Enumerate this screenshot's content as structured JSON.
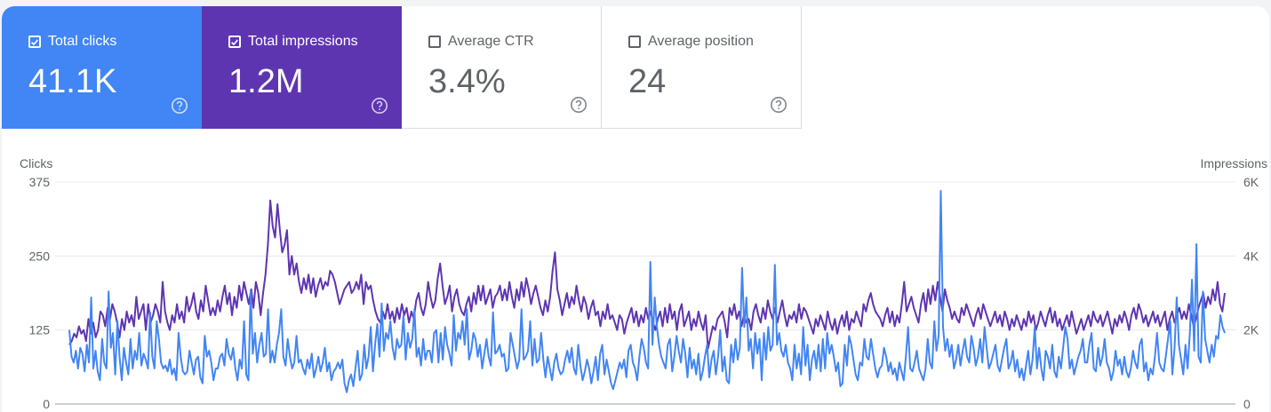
{
  "metrics": {
    "clicks": {
      "label": "Total clicks",
      "value": "41.1K",
      "checked": true,
      "color": "#4285f4"
    },
    "impressions": {
      "label": "Total impressions",
      "value": "1.2M",
      "checked": true,
      "color": "#5e35b1"
    },
    "ctr": {
      "label": "Average CTR",
      "value": "3.4%",
      "checked": false
    },
    "position": {
      "label": "Average position",
      "value": "24",
      "checked": false
    }
  },
  "chart_data": {
    "type": "line",
    "left_axis": {
      "label": "Clicks",
      "ticks": [
        "375",
        "250",
        "125",
        "0"
      ],
      "range": [
        0,
        375
      ]
    },
    "right_axis": {
      "label": "Impressions",
      "ticks": [
        "6K",
        "4K",
        "2K",
        "0"
      ],
      "range": [
        0,
        6000
      ]
    },
    "grid": true,
    "series": [
      {
        "name": "Clicks",
        "axis": "left",
        "color": "#4285f4",
        "values": [
          125,
          80,
          70,
          90,
          60,
          95,
          85,
          55,
          100,
          70,
          180,
          60,
          90,
          55,
          40,
          110,
          70,
          60,
          190,
          95,
          120,
          50,
          140,
          80,
          40,
          95,
          70,
          50,
          110,
          60,
          90,
          75,
          120,
          65,
          85,
          75,
          60,
          155,
          80,
          60,
          140,
          110,
          70,
          60,
          65,
          55,
          75,
          50,
          60,
          40,
          120,
          80,
          55,
          50,
          55,
          90,
          70,
          50,
          75,
          80,
          45,
          35,
          115,
          80,
          90,
          70,
          40,
          60,
          60,
          80,
          85,
          65,
          110,
          85,
          75,
          95,
          60,
          40,
          75,
          60,
          140,
          50,
          40,
          190,
          85,
          120,
          70,
          100,
          120,
          80,
          85,
          160,
          70,
          90,
          70,
          100,
          120,
          160,
          80,
          65,
          110,
          80,
          60,
          70,
          115,
          70,
          75,
          60,
          50,
          75,
          60,
          85,
          45,
          60,
          80,
          55,
          70,
          95,
          55,
          70,
          40,
          55,
          60,
          70,
          60,
          75,
          35,
          20,
          40,
          50,
          30,
          60,
          90,
          40,
          50,
          100,
          60,
          80,
          130,
          55,
          100,
          135,
          80,
          170,
          90,
          120,
          110,
          140,
          95,
          75,
          110,
          95,
          100,
          150,
          75,
          120,
          95,
          110,
          160,
          80,
          95,
          65,
          110,
          75,
          90,
          90,
          70,
          120,
          125,
          70,
          120,
          75,
          130,
          100,
          85,
          65,
          150,
          90,
          120,
          110,
          140,
          100,
          160,
          75,
          90,
          120,
          110,
          80,
          100,
          60,
          85,
          110,
          80,
          65,
          155,
          85,
          90,
          100,
          80,
          85,
          55,
          60,
          120,
          100,
          80,
          60,
          75,
          160,
          75,
          80,
          90,
          140,
          65,
          110,
          70,
          75,
          120,
          75,
          45,
          80,
          60,
          40,
          70,
          85,
          60,
          50,
          55,
          75,
          90,
          70,
          95,
          60,
          50,
          100,
          65,
          40,
          55,
          75,
          60,
          35,
          55,
          80,
          40,
          85,
          100,
          50,
          75,
          55,
          35,
          25,
          40,
          55,
          70,
          60,
          75,
          45,
          90,
          100,
          70,
          60,
          40,
          80,
          110,
          95,
          70,
          60,
          240,
          100,
          180,
          130,
          100,
          80,
          70,
          60,
          100,
          110,
          55,
          80,
          115,
          90,
          70,
          110,
          85,
          45,
          95,
          60,
          75,
          50,
          85,
          40,
          55,
          80,
          100,
          45,
          75,
          90,
          50,
          80,
          125,
          55,
          80,
          40,
          35,
          100,
          70,
          110,
          75,
          95,
          230,
          130,
          180,
          90,
          110,
          60,
          120,
          85,
          110,
          40,
          120,
          75,
          130,
          90,
          100,
          235,
          100,
          120,
          90,
          80,
          100,
          70,
          60,
          40,
          100,
          60,
          85,
          50,
          130,
          65,
          100,
          40,
          75,
          90,
          60,
          100,
          55,
          110,
          60,
          120,
          85,
          100,
          80,
          55,
          70,
          30,
          35,
          100,
          65,
          115,
          100,
          75,
          50,
          40,
          70,
          65,
          110,
          80,
          75,
          110,
          85,
          60,
          45,
          60,
          65,
          95,
          80,
          55,
          70,
          50,
          60,
          40,
          70,
          55,
          40,
          80,
          130,
          60,
          55,
          70,
          90,
          60,
          50,
          40,
          60,
          110,
          70,
          60,
          140,
          90,
          115,
          360,
          130,
          90,
          110,
          80,
          100,
          60,
          75,
          100,
          65,
          90,
          110,
          80,
          70,
          115,
          95,
          65,
          80,
          110,
          70,
          130,
          95,
          60,
          70,
          85,
          100,
          65,
          55,
          75,
          95,
          110,
          60,
          70,
          90,
          55,
          75,
          45,
          60,
          40,
          65,
          90,
          50,
          75,
          130,
          60,
          95,
          60,
          40,
          90,
          80,
          60,
          100,
          55,
          45,
          80,
          60,
          95,
          130,
          110,
          60,
          75,
          50,
          65,
          80,
          90,
          110,
          70,
          70,
          100,
          120,
          60,
          55,
          95,
          65,
          80,
          110,
          70,
          60,
          40,
          55,
          90,
          65,
          75,
          50,
          80,
          55,
          45,
          60,
          90,
          70,
          60,
          100,
          110,
          55,
          70,
          40,
          60,
          50,
          80,
          120,
          70,
          60,
          55,
          80,
          110,
          140,
          50,
          95,
          180,
          100,
          75,
          50,
          100,
          60,
          120,
          210,
          90,
          270,
          80,
          70,
          190,
          110,
          90,
          70,
          100,
          80,
          115,
          110,
          150,
          130,
          120
        ]
      },
      {
        "name": "Impressions",
        "axis": "right",
        "color": "#5e35b1",
        "values": [
          1600,
          1700,
          1900,
          1800,
          2100,
          1900,
          2000,
          1700,
          2300,
          1900,
          2200,
          1800,
          2000,
          2500,
          2400,
          2100,
          2600,
          2300,
          2700,
          2500,
          2200,
          1800,
          2300,
          2000,
          2500,
          2200,
          2400,
          2100,
          2900,
          2300,
          2500,
          2700,
          2000,
          2700,
          2200,
          2400,
          2700,
          2500,
          2200,
          3300,
          2500,
          2200,
          2000,
          2400,
          2200,
          2700,
          2300,
          2500,
          2200,
          2900,
          2500,
          2700,
          3000,
          2500,
          2300,
          2800,
          2500,
          3200,
          2800,
          2400,
          2600,
          2400,
          2800,
          2500,
          2900,
          3200,
          2700,
          3000,
          2400,
          2900,
          2600,
          3200,
          2800,
          3300,
          3000,
          2700,
          3100,
          2600,
          3300,
          3000,
          2400,
          3000,
          3500,
          4300,
          5500,
          4800,
          4500,
          5400,
          4700,
          4100,
          4300,
          4700,
          3500,
          4000,
          3500,
          3800,
          3300,
          3000,
          3400,
          3100,
          3500,
          3000,
          3400,
          2900,
          3200,
          3400,
          3100,
          3300,
          3200,
          3600,
          3500,
          3300,
          3000,
          2700,
          2900,
          3100,
          3200,
          3300,
          3000,
          3100,
          3300,
          3100,
          3500,
          2700,
          3300,
          3100,
          3200,
          2800,
          2500,
          2300,
          2200,
          2500,
          2300,
          2700,
          2300,
          2500,
          2200,
          2600,
          2300,
          2700,
          2400,
          2600,
          2200,
          2500,
          2300,
          2800,
          3000,
          2600,
          2400,
          2700,
          3300,
          2900,
          2600,
          2800,
          3400,
          3800,
          3200,
          2700,
          2900,
          3200,
          2500,
          2900,
          3100,
          2700,
          2500,
          2400,
          2700,
          2900,
          2500,
          3000,
          2700,
          3200,
          2800,
          3200,
          2700,
          2900,
          3100,
          2600,
          2900,
          3000,
          3200,
          2800,
          3100,
          2800,
          3300,
          2900,
          2600,
          3100,
          2800,
          3300,
          2900,
          3400,
          3100,
          2700,
          3000,
          3200,
          2900,
          2600,
          2400,
          2800,
          2500,
          2900,
          3600,
          4100,
          3100,
          2800,
          2400,
          2700,
          3000,
          2600,
          2900,
          2700,
          3200,
          2800,
          2500,
          2900,
          2700,
          2300,
          2600,
          2800,
          2400,
          2500,
          2100,
          2500,
          2300,
          2700,
          2300,
          2400,
          2200,
          2000,
          2400,
          2300,
          1900,
          2200,
          2400,
          2600,
          2200,
          2500,
          2100,
          2400,
          2200,
          2600,
          2300,
          2500,
          2200,
          2000,
          2300,
          2500,
          2100,
          2600,
          2200,
          2700,
          2300,
          2500,
          2000,
          2500,
          2700,
          2100,
          2300,
          2500,
          2000,
          2300,
          2100,
          2500,
          2200,
          2000,
          2400,
          1500,
          1800,
          2100,
          2000,
          2300,
          2400,
          2500,
          2200,
          1800,
          2600,
          2400,
          2700,
          2300,
          2500,
          2100,
          2400,
          2200,
          2300,
          2000,
          2500,
          2700,
          2400,
          2200,
          2600,
          2300,
          2800,
          2500,
          2300,
          2600,
          2200,
          2500,
          2800,
          2400,
          2100,
          2400,
          2300,
          2500,
          2200,
          2700,
          2300,
          2600,
          2500,
          2300,
          2100,
          1900,
          2300,
          2100,
          2400,
          2200,
          2000,
          2500,
          2200,
          2000,
          2300,
          1900,
          2200,
          2400,
          2100,
          2500,
          2000,
          2300,
          2200,
          2500,
          2300,
          2100,
          2700,
          2500,
          2800,
          3000,
          2700,
          2500,
          2400,
          2300,
          2100,
          2400,
          2600,
          2200,
          2500,
          2100,
          2400,
          2200,
          2700,
          3300,
          2500,
          2700,
          2900,
          2600,
          2400,
          2200,
          2700,
          3000,
          2500,
          3100,
          2700,
          3200,
          2800,
          3300,
          2900,
          2500,
          3100,
          2800,
          2600,
          2300,
          2500,
          2300,
          2200,
          2600,
          2400,
          2700,
          2500,
          2300,
          2100,
          2400,
          2600,
          2300,
          2700,
          2500,
          2300,
          2100,
          2300,
          2500,
          2200,
          2400,
          2100,
          2500,
          2300,
          2000,
          2300,
          2100,
          2400,
          2200,
          2000,
          2300,
          2100,
          2500,
          2200,
          2400,
          2000,
          2200,
          2500,
          2300,
          2100,
          2400,
          2600,
          2200,
          2500,
          2100,
          2300,
          2000,
          2200,
          2400,
          2100,
          2500,
          2200,
          1900,
          2100,
          2300,
          2000,
          2200,
          2400,
          2100,
          2500,
          2300,
          2200,
          2400,
          2100,
          2300,
          2500,
          2200,
          1900,
          2300,
          2100,
          2400,
          2200,
          2500,
          2300,
          2000,
          2400,
          2600,
          2300,
          2700,
          2500,
          2200,
          2400,
          2100,
          2300,
          2500,
          2200,
          2400,
          2100,
          2300,
          2500,
          2000,
          2300,
          2500,
          2200,
          2400,
          2600,
          2300,
          2500,
          2300,
          2700,
          2400,
          2100,
          2300,
          2600,
          2800,
          3000,
          2600,
          2900,
          2700,
          3100,
          2800,
          3300,
          2700,
          2500,
          3000
        ]
      }
    ]
  }
}
